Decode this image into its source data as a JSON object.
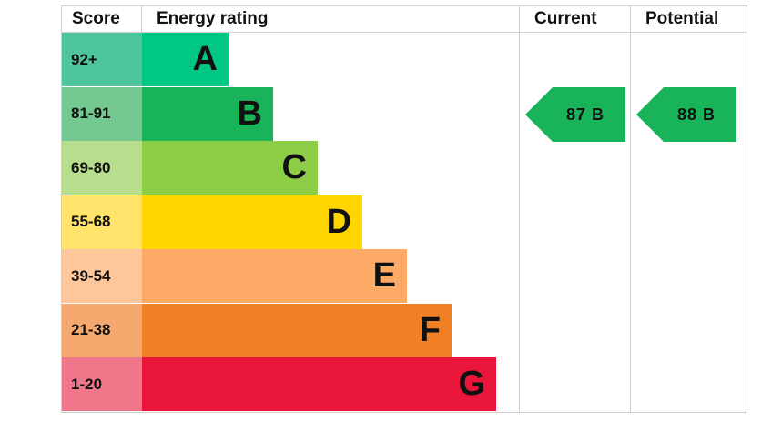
{
  "chart_data": {
    "type": "table",
    "headers": {
      "score": "Score",
      "rating": "Energy rating",
      "current": "Current",
      "potential": "Potential"
    },
    "bands": [
      {
        "letter": "A",
        "score": "92+",
        "color": "#008054",
        "fill": "#00c781",
        "score_bg": "#4fc59b",
        "text_color": "#111111"
      },
      {
        "letter": "B",
        "score": "81-91",
        "color": "#19b459",
        "fill": "#19b459",
        "score_bg": "#73c98f",
        "text_color": "#111111"
      },
      {
        "letter": "C",
        "score": "69-80",
        "color": "#8dce46",
        "fill": "#8dce46",
        "score_bg": "#b7de8c",
        "text_color": "#111111"
      },
      {
        "letter": "D",
        "score": "55-68",
        "color": "#ffd500",
        "fill": "#ffd500",
        "score_bg": "#ffe36a",
        "text_color": "#111111"
      },
      {
        "letter": "E",
        "score": "39-54",
        "color": "#fcaa65",
        "fill": "#fcaa65",
        "score_bg": "#fdc79b",
        "text_color": "#111111"
      },
      {
        "letter": "F",
        "score": "21-38",
        "color": "#ef8023",
        "fill": "#ef8023",
        "score_bg": "#f5a96e",
        "text_color": "#111111"
      },
      {
        "letter": "G",
        "score": "1-20",
        "color": "#e9153b",
        "fill": "#e9153b",
        "score_bg": "#f07689",
        "text_color": "#111111"
      }
    ],
    "current": {
      "value": 87,
      "letter": "B",
      "label": "87 B",
      "color": "#19b459"
    },
    "potential": {
      "value": 88,
      "letter": "B",
      "label": "88 B",
      "color": "#19b459"
    }
  }
}
